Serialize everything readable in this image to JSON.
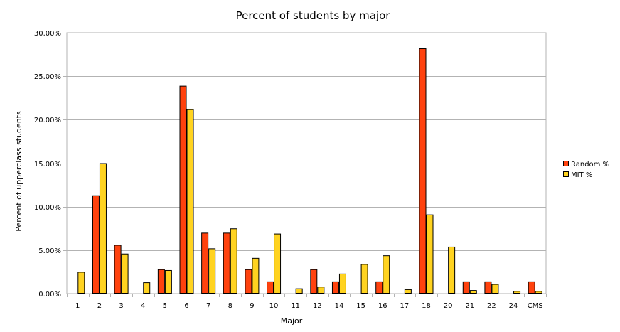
{
  "chart_data": {
    "type": "bar",
    "title": "Percent of students by major",
    "xlabel": "Major",
    "ylabel": "Percent of upperclass students",
    "ylim": [
      0,
      30
    ],
    "y_ticks": [
      "0.00%",
      "5.00%",
      "10.00%",
      "15.00%",
      "20.00%",
      "25.00%",
      "30.00%"
    ],
    "grid": "horizontal",
    "legend_position": "right",
    "categories": [
      "1",
      "2",
      "3",
      "4",
      "5",
      "6",
      "7",
      "8",
      "9",
      "10",
      "11",
      "12",
      "14",
      "15",
      "16",
      "17",
      "18",
      "20",
      "21",
      "22",
      "24",
      "CMS"
    ],
    "series": [
      {
        "name": "Random %",
        "color": "#ff420e",
        "values": [
          0,
          11.3,
          5.6,
          0,
          2.8,
          23.9,
          7.0,
          7.0,
          2.8,
          1.4,
          0,
          2.8,
          1.4,
          0,
          1.4,
          0,
          28.2,
          0,
          1.4,
          1.4,
          0,
          1.4
        ]
      },
      {
        "name": "MIT %",
        "color": "#ffd320",
        "values": [
          2.5,
          15.0,
          4.6,
          1.3,
          2.7,
          21.2,
          5.2,
          7.5,
          4.1,
          6.9,
          0.6,
          0.8,
          2.3,
          3.4,
          4.4,
          0.5,
          9.1,
          5.4,
          0.4,
          1.1,
          0.3,
          0.3
        ]
      }
    ]
  }
}
